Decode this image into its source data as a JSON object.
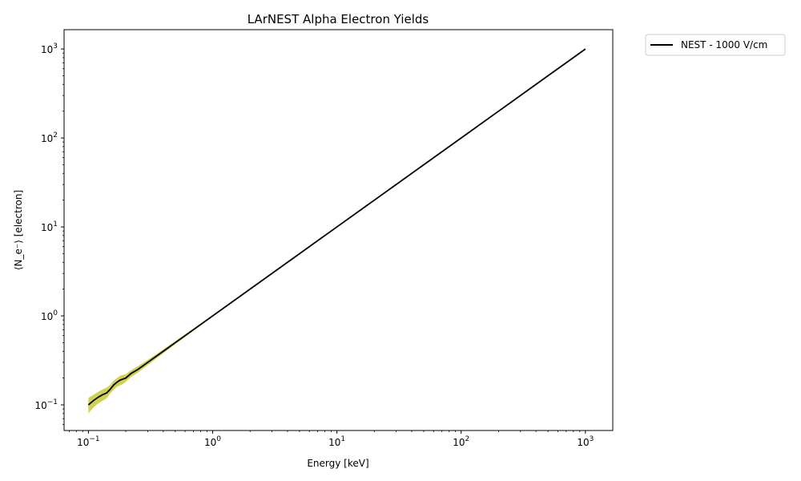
{
  "chart_data": {
    "type": "line",
    "title": "LArNEST Alpha Electron Yields",
    "xlabel": "Energy [keV]",
    "ylabel": "⟨N_e⁻⟩ [electron]",
    "xscale": "log",
    "yscale": "log",
    "xlim": [
      0.0637,
      1660
    ],
    "ylim": [
      0.0515,
      1650
    ],
    "grid": false,
    "legend_position": "outside-top-right",
    "x_ticks": [
      {
        "value": 0.1,
        "base": "10",
        "exp": "−1"
      },
      {
        "value": 1,
        "base": "10",
        "exp": "0"
      },
      {
        "value": 10,
        "base": "10",
        "exp": "1"
      },
      {
        "value": 100,
        "base": "10",
        "exp": "2"
      },
      {
        "value": 1000,
        "base": "10",
        "exp": "3"
      }
    ],
    "y_ticks": [
      {
        "value": 0.1,
        "base": "10",
        "exp": "−1"
      },
      {
        "value": 1,
        "base": "10",
        "exp": "0"
      },
      {
        "value": 10,
        "base": "10",
        "exp": "1"
      },
      {
        "value": 100,
        "base": "10",
        "exp": "2"
      },
      {
        "value": 1000,
        "base": "10",
        "exp": "3"
      }
    ],
    "series": [
      {
        "name": "NEST - 1000 V/cm",
        "color": "#000000",
        "band_color": "#c8c832",
        "x": [
          0.1,
          0.11,
          0.12,
          0.13,
          0.14,
          0.15,
          0.16,
          0.17,
          0.18,
          0.19,
          0.2,
          0.22,
          0.25,
          0.3,
          0.35,
          0.4,
          0.45,
          0.5,
          0.6,
          0.7,
          0.8,
          1,
          2,
          5,
          10,
          20,
          50,
          100,
          200,
          500,
          1000
        ],
        "y": [
          0.1,
          0.112,
          0.122,
          0.13,
          0.136,
          0.15,
          0.168,
          0.18,
          0.19,
          0.195,
          0.2,
          0.225,
          0.25,
          0.3,
          0.35,
          0.4,
          0.45,
          0.5,
          0.6,
          0.7,
          0.8,
          1,
          2,
          5,
          10,
          20,
          50,
          100,
          200,
          500,
          1000
        ],
        "y_lower": [
          0.08,
          0.094,
          0.104,
          0.111,
          0.118,
          0.135,
          0.148,
          0.16,
          0.166,
          0.172,
          0.182,
          0.205,
          0.23,
          0.28,
          0.33,
          0.38,
          0.43,
          0.48,
          0.58,
          0.68,
          0.78,
          0.98,
          1.97,
          4.95,
          9.9,
          19.8,
          49.6,
          99.2,
          198.5,
          496,
          993
        ],
        "y_upper": [
          0.12,
          0.13,
          0.14,
          0.149,
          0.156,
          0.168,
          0.188,
          0.2,
          0.212,
          0.217,
          0.22,
          0.245,
          0.272,
          0.32,
          0.37,
          0.42,
          0.47,
          0.52,
          0.62,
          0.72,
          0.82,
          1.02,
          2.03,
          5.05,
          10.1,
          20.2,
          50.4,
          100.8,
          201.5,
          504,
          1007
        ]
      }
    ]
  }
}
